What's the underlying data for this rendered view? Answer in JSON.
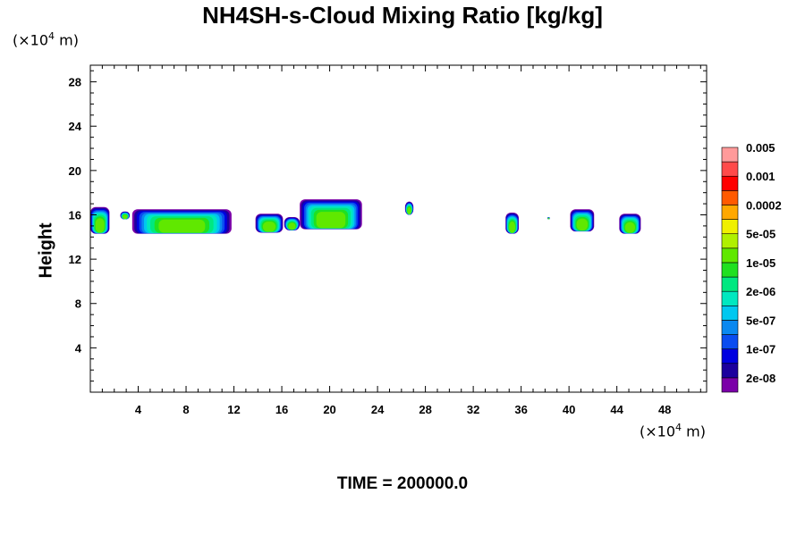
{
  "chart_data": {
    "type": "heatmap",
    "title": "NH4SH-s-Cloud Mixing Ratio [kg/kg]",
    "ylabel": "Height",
    "xunit_prefix": "(×10",
    "yunit_prefix": "(×10",
    "unit_exponent": "4",
    "unit_suffix": " m)",
    "footer": "TIME = 200000.0",
    "xlim": [
      0,
      51.5
    ],
    "ylim": [
      0,
      29.5
    ],
    "x_ticks": [
      4,
      8,
      12,
      16,
      20,
      24,
      28,
      32,
      36,
      40,
      44,
      48
    ],
    "y_ticks": [
      4,
      8,
      12,
      16,
      20,
      24,
      28
    ],
    "colorbar": {
      "colors": [
        "#7b00a8",
        "#1c009e",
        "#0000e0",
        "#0a4cf0",
        "#0a88f0",
        "#00c8f0",
        "#00e8c0",
        "#00e880",
        "#20e020",
        "#60e800",
        "#b0f000",
        "#f0f000",
        "#ffa800",
        "#ff5a00",
        "#ff0000",
        "#ff4a4a",
        "#ff9a9a"
      ],
      "labels": [
        "2e-08",
        "1e-07",
        "5e-07",
        "2e-06",
        "1e-05",
        "5e-05",
        "0.0002",
        "0.001",
        "0.005"
      ]
    },
    "clouds": [
      {
        "x0": 0.0,
        "x1": 1.6,
        "y_bottom": 14.3,
        "y_top": 16.7
      },
      {
        "x0": 2.5,
        "x1": 3.3,
        "y_bottom": 15.6,
        "y_top": 16.3
      },
      {
        "x0": 3.5,
        "x1": 11.8,
        "y_bottom": 14.3,
        "y_top": 16.5
      },
      {
        "x0": 13.8,
        "x1": 16.1,
        "y_bottom": 14.4,
        "y_top": 16.1
      },
      {
        "x0": 16.2,
        "x1": 17.5,
        "y_bottom": 14.6,
        "y_top": 15.8
      },
      {
        "x0": 17.5,
        "x1": 22.7,
        "y_bottom": 14.7,
        "y_top": 17.4
      },
      {
        "x0": 26.3,
        "x1": 27.0,
        "y_bottom": 16.0,
        "y_top": 17.2
      },
      {
        "x0": 34.7,
        "x1": 35.8,
        "y_bottom": 14.3,
        "y_top": 16.2
      },
      {
        "x0": 38.2,
        "x1": 38.4,
        "y_bottom": 15.6,
        "y_top": 15.8
      },
      {
        "x0": 40.1,
        "x1": 42.1,
        "y_bottom": 14.5,
        "y_top": 16.5
      },
      {
        "x0": 44.2,
        "x1": 46.0,
        "y_bottom": 14.3,
        "y_top": 16.1
      }
    ]
  }
}
